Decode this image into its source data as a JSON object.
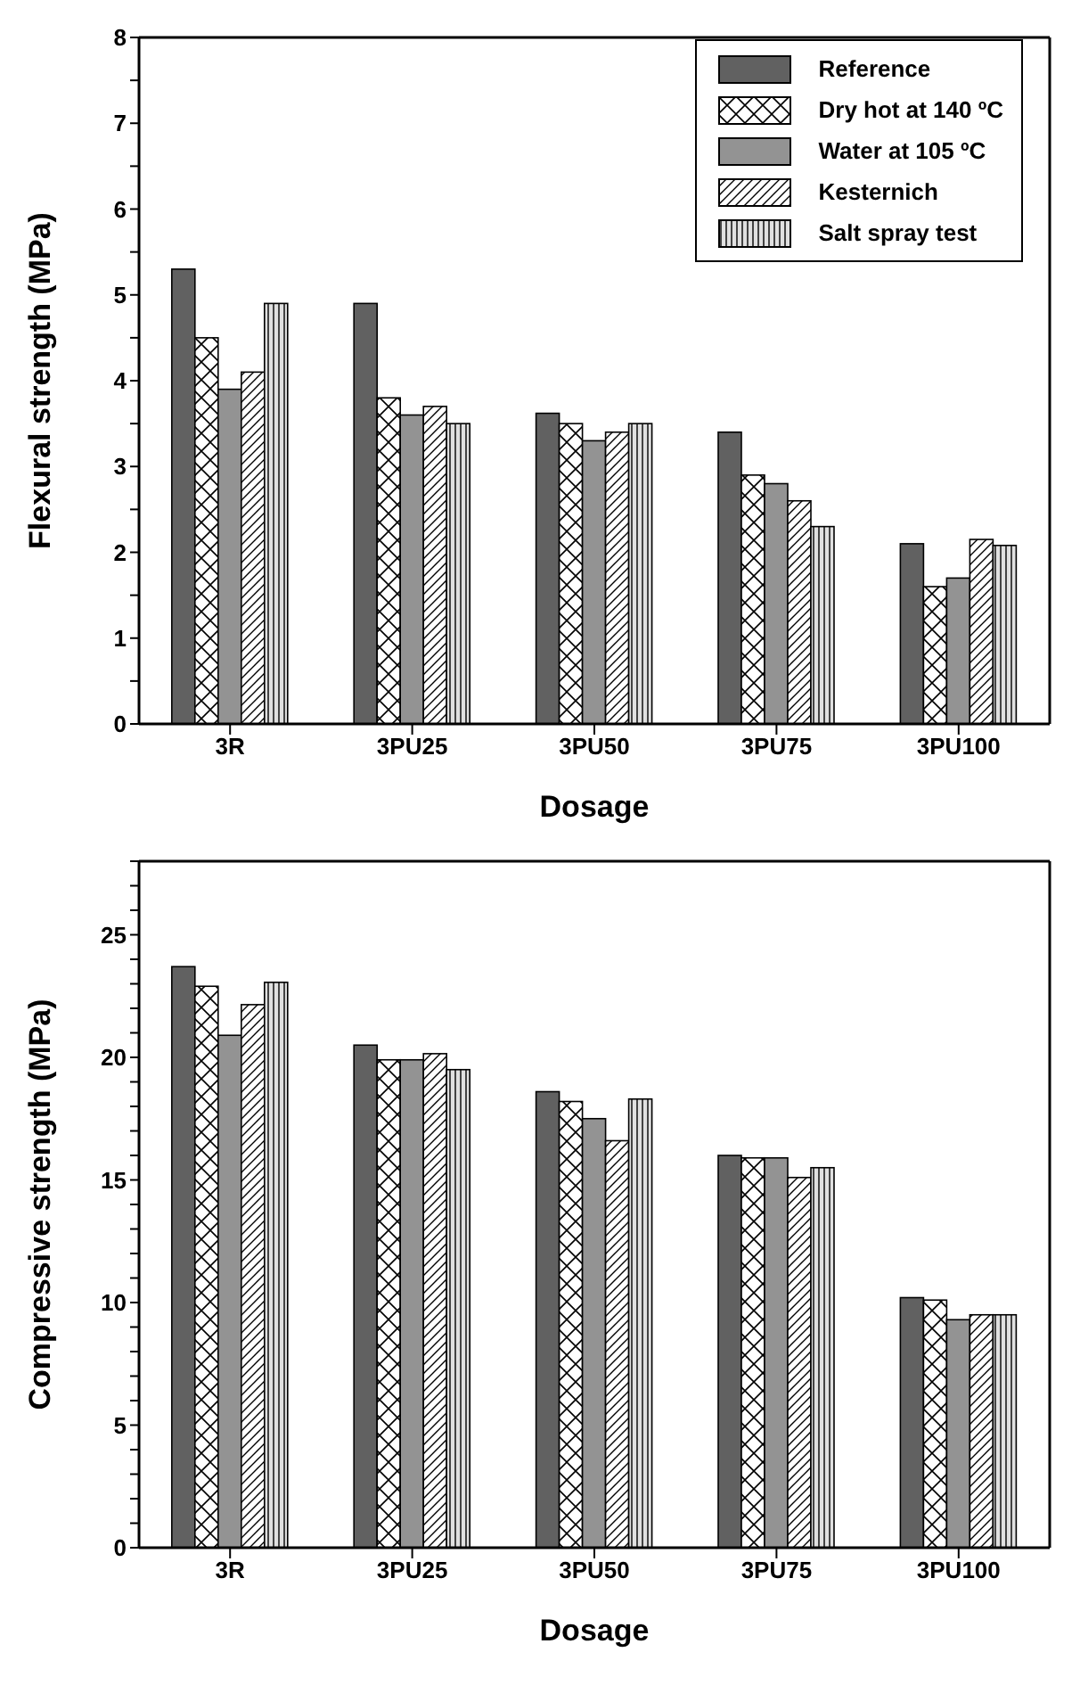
{
  "chart_data": [
    {
      "type": "bar",
      "xlabel": "Dosage",
      "ylabel": "Flexural strength (MPa)",
      "categories": [
        "3R",
        "3PU25",
        "3PU50",
        "3PU75",
        "3PU100"
      ],
      "series": [
        {
          "name": "Reference",
          "color": "#616161",
          "values": [
            5.3,
            4.9,
            3.62,
            3.4,
            2.1
          ]
        },
        {
          "name": "Dry hot at 140 ºC",
          "color": "#ffffff",
          "values": [
            4.5,
            3.8,
            3.5,
            2.9,
            1.6
          ]
        },
        {
          "name": "Water at 105 ºC",
          "color": "#939393",
          "values": [
            3.9,
            3.6,
            3.3,
            2.8,
            1.7
          ]
        },
        {
          "name": "Kesternich",
          "color": "#ffffff",
          "values": [
            4.1,
            3.7,
            3.4,
            2.6,
            2.15
          ]
        },
        {
          "name": "Salt spray test",
          "color": "#e0e0e0",
          "values": [
            4.9,
            3.5,
            3.5,
            2.3,
            2.08
          ]
        }
      ],
      "ylim": [
        0,
        8
      ],
      "yticks": [
        0,
        {
          "value": 0.5,
          "label": null
        },
        1,
        {
          "value": 1.5,
          "label": null
        },
        2,
        {
          "value": 2.5,
          "label": null
        },
        3,
        {
          "value": 3.5,
          "label": null
        },
        4,
        {
          "value": 4.5,
          "label": null
        },
        5,
        {
          "value": 5.5,
          "label": null
        },
        6,
        {
          "value": 6.5,
          "label": null
        },
        7,
        {
          "value": 7.5,
          "label": null
        },
        8
      ],
      "legend": "top right",
      "grid": false
    },
    {
      "type": "bar",
      "xlabel": "Dosage",
      "ylabel": "Compressive strength (MPa)",
      "categories": [
        "3R",
        "3PU25",
        "3PU50",
        "3PU75",
        "3PU100"
      ],
      "series": [
        {
          "color": "#616161",
          "values": [
            23.7,
            20.5,
            18.6,
            16.0,
            10.2
          ]
        },
        {
          "color": "#ffffff",
          "values": [
            22.9,
            19.9,
            18.2,
            15.9,
            10.1
          ]
        },
        {
          "color": "#939393",
          "values": [
            20.9,
            19.9,
            17.5,
            15.9,
            9.3
          ]
        },
        {
          "color": "#ffffff",
          "values": [
            22.15,
            20.15,
            16.6,
            15.1,
            9.5
          ]
        },
        {
          "color": "#e0e0e0",
          "values": [
            23.06,
            19.5,
            18.3,
            15.5,
            9.5
          ]
        }
      ],
      "ylim": [
        0,
        28
      ],
      "yticks": [
        0,
        {
          "value": 1,
          "label": null
        },
        {
          "value": 2,
          "label": null
        },
        {
          "value": 3,
          "label": null
        },
        {
          "value": 4,
          "label": null
        },
        5,
        {
          "value": 6,
          "label": null
        },
        {
          "value": 7,
          "label": null
        },
        {
          "value": 8,
          "label": null
        },
        {
          "value": 9,
          "label": null
        },
        10,
        {
          "value": 11,
          "label": null
        },
        {
          "value": 12,
          "label": null
        },
        {
          "value": 13,
          "label": null
        },
        {
          "value": 14,
          "label": null
        },
        15,
        {
          "value": 16,
          "label": null
        },
        {
          "value": 17,
          "label": null
        },
        {
          "value": 18,
          "label": null
        },
        {
          "value": 19,
          "label": null
        },
        20,
        {
          "value": 21,
          "label": null
        },
        {
          "value": 22,
          "label": null
        },
        {
          "value": 23,
          "label": null
        },
        {
          "value": 24,
          "label": null
        },
        25,
        {
          "value": 26,
          "label": null
        },
        {
          "value": 27,
          "label": null
        },
        {
          "value": 28,
          "label": null
        }
      ],
      "legend": false,
      "grid": false
    }
  ]
}
